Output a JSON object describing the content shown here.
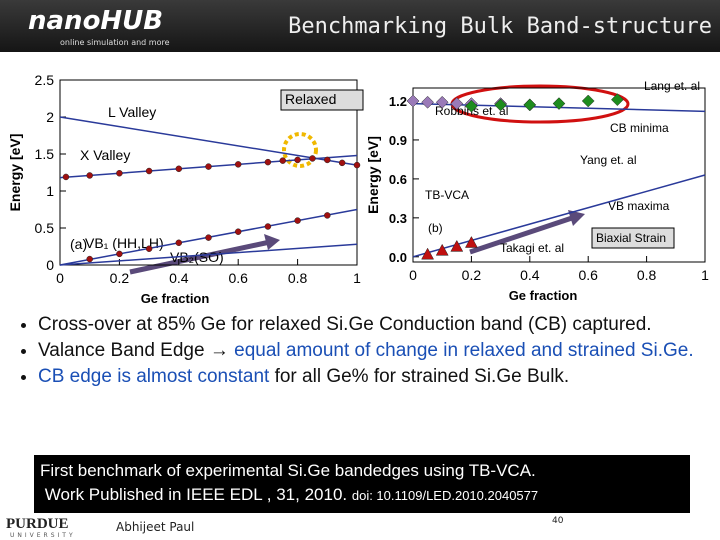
{
  "header": {
    "logo": "nanoHUB",
    "logo_sub": "online simulation and more",
    "title": "Benchmarking Bulk Band-structure"
  },
  "chart_data": [
    {
      "type": "line",
      "ylabel": "Energy [eV]",
      "xlabel": "Ge fraction",
      "xlim": [
        0,
        1
      ],
      "ylim": [
        0,
        2.5
      ],
      "xticks": [
        0,
        0.2,
        0.4,
        0.6,
        0.8,
        1
      ],
      "yticks": [
        0,
        0.5,
        1,
        1.5,
        2,
        2.5
      ],
      "annotations": [
        "Relaxed",
        "L Valley",
        "X Valley",
        "VB₁ (HH,LH)",
        "VB₂(SO)",
        "(a)"
      ],
      "series": [
        {
          "style": "line",
          "color": "#2a3a9a",
          "x": [
            0,
            1
          ],
          "values": [
            2.0,
            1.35
          ]
        },
        {
          "style": "line",
          "color": "#2a3a9a",
          "x": [
            0,
            1
          ],
          "values": [
            1.18,
            1.48
          ]
        },
        {
          "style": "line",
          "color": "#2a3a9a",
          "x": [
            0,
            1
          ],
          "values": [
            0,
            0.75
          ]
        },
        {
          "style": "line",
          "color": "#2a3a9a",
          "x": [
            0,
            1
          ],
          "values": [
            0,
            0.28
          ]
        },
        {
          "style": "points",
          "marker": "dot",
          "color": "#a01010",
          "x": [
            0.02,
            0.1,
            0.2,
            0.3,
            0.4,
            0.5,
            0.6,
            0.7,
            0.75,
            0.8,
            0.85,
            0.9,
            0.95,
            1
          ],
          "values": [
            1.19,
            1.21,
            1.24,
            1.27,
            1.3,
            1.33,
            1.36,
            1.39,
            1.41,
            1.42,
            1.44,
            1.42,
            1.38,
            1.35
          ]
        },
        {
          "style": "points",
          "marker": "dot",
          "color": "#a01010",
          "x": [
            0.1,
            0.2,
            0.3,
            0.4,
            0.5,
            0.6,
            0.7,
            0.8,
            0.9
          ],
          "values": [
            0.08,
            0.15,
            0.22,
            0.3,
            0.37,
            0.45,
            0.52,
            0.6,
            0.67
          ]
        }
      ]
    },
    {
      "type": "line",
      "ylabel": "Energy [eV]",
      "xlabel": "Ge fraction",
      "xlim": [
        0,
        1
      ],
      "ylim": [
        -0.04,
        1.3
      ],
      "xticks": [
        0,
        0.2,
        0.4,
        0.6,
        0.8,
        1
      ],
      "yticks": [
        {
          "value": 0,
          "label": "0.0"
        },
        0.3,
        0.6,
        0.9,
        1.2
      ],
      "annotations": [
        "Lang et. al",
        "Robbins et. al",
        "CB minima",
        "Yang et. al",
        "TB-VCA",
        "VB maxima",
        "(b)",
        "Takagi et. al",
        "Biaxial Strain"
      ],
      "series": [
        {
          "style": "line",
          "color": "#2a3a9a",
          "x": [
            0,
            1
          ],
          "values": [
            1.18,
            1.12
          ]
        },
        {
          "style": "line",
          "color": "#2a3a9a",
          "x": [
            0,
            1
          ],
          "values": [
            0,
            0.63
          ]
        },
        {
          "style": "points",
          "marker": "diamond",
          "color": "#9a7ab8",
          "x": [
            0,
            0.05,
            0.1,
            0.15,
            0.2,
            0.3,
            0.4
          ],
          "values": [
            1.2,
            1.19,
            1.19,
            1.18,
            1.18,
            1.18,
            1.17
          ]
        },
        {
          "style": "points",
          "marker": "diamond",
          "color": "#1e8c1e",
          "x": [
            0.2,
            0.3,
            0.4,
            0.5,
            0.6,
            0.7
          ],
          "values": [
            1.16,
            1.17,
            1.17,
            1.18,
            1.2,
            1.21
          ]
        },
        {
          "style": "points",
          "marker": "triangle",
          "color": "#c01010",
          "x": [
            0.05,
            0.1,
            0.15,
            0.2
          ],
          "values": [
            0.02,
            0.05,
            0.08,
            0.11
          ]
        }
      ]
    }
  ],
  "bullets": [
    [
      "Cross-over at 85% Ge for relaxed Si.Ge Conduction band (CB) captured."
    ],
    [
      "Valance Band Edge → ",
      "equal amount of change in relaxed and strained Si.Ge."
    ],
    [
      "",
      "CB edge is almost constant",
      " for all Ge% for strained Si.Ge Bulk."
    ]
  ],
  "box": {
    "line1": "First benchmark of experimental Si.Ge bandedges using TB-VCA.",
    "line2": "Work Published in IEEE EDL , 31, 2010.",
    "doi": "doi: 10.1109/LED.2010.2040577"
  },
  "footer": {
    "university": "PURDUE",
    "university_sub": "UNIVERSITY",
    "author": "Abhijeet Paul",
    "page": "40"
  }
}
